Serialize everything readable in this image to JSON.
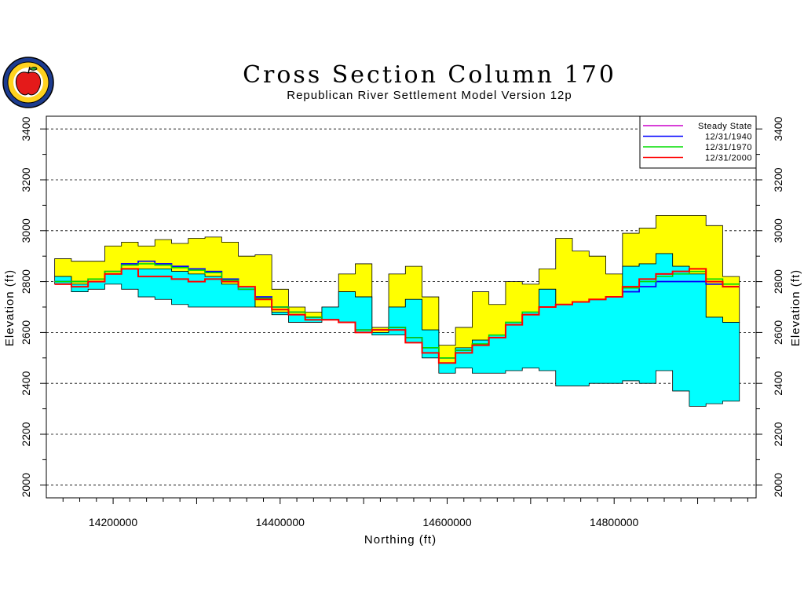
{
  "chart_data": {
    "type": "area",
    "title": "Cross Section Column 170",
    "subtitle": "Republican River Settlement Model Version 12p",
    "xlabel": "Northing (ft)",
    "ylabel": "Elevation (ft)",
    "xlim": [
      14120000,
      14970000
    ],
    "ylim": [
      1950,
      3450
    ],
    "x_ticks": [
      14200000,
      14400000,
      14600000,
      14800000
    ],
    "x_tick_labels": [
      "14200000",
      "14400000",
      "14600000",
      "14800000"
    ],
    "y_ticks": [
      2000,
      2200,
      2400,
      2600,
      2800,
      3000,
      3200,
      3400
    ],
    "y_tick_labels": [
      "2000",
      "2200",
      "2400",
      "2600",
      "2800",
      "3000",
      "3200",
      "3400"
    ],
    "grid": "horizontal dashed",
    "legend_position": "top-right",
    "colors": {
      "upper_layer": "#ffff00",
      "aquifer": "#00ffff",
      "outline": "#000000"
    },
    "x": [
      14140000,
      14160000,
      14180000,
      14200000,
      14220000,
      14240000,
      14260000,
      14280000,
      14300000,
      14320000,
      14340000,
      14360000,
      14380000,
      14400000,
      14420000,
      14440000,
      14460000,
      14480000,
      14500000,
      14520000,
      14540000,
      14560000,
      14580000,
      14600000,
      14620000,
      14640000,
      14660000,
      14680000,
      14700000,
      14720000,
      14740000,
      14760000,
      14780000,
      14800000,
      14820000,
      14840000,
      14860000,
      14880000,
      14900000,
      14920000,
      14940000
    ],
    "land_surface": [
      2890,
      2880,
      2880,
      2940,
      2955,
      2940,
      2965,
      2950,
      2970,
      2975,
      2955,
      2900,
      2905,
      2770,
      2700,
      2680,
      2700,
      2830,
      2870,
      2620,
      2830,
      2860,
      2740,
      2550,
      2620,
      2760,
      2710,
      2800,
      2790,
      2850,
      2970,
      2920,
      2900,
      2830,
      2990,
      3010,
      3060,
      3060,
      3060,
      3020,
      2820
    ],
    "aquifer_top": [
      2820,
      2790,
      2800,
      2830,
      2850,
      2850,
      2850,
      2840,
      2830,
      2820,
      2790,
      2780,
      2700,
      2680,
      2670,
      2660,
      2700,
      2760,
      2740,
      2600,
      2700,
      2730,
      2610,
      2480,
      2540,
      2570,
      2590,
      2640,
      2680,
      2770,
      2710,
      2720,
      2730,
      2740,
      2860,
      2870,
      2910,
      2860,
      2830,
      2660,
      2640
    ],
    "aquifer_base": [
      2790,
      2760,
      2770,
      2790,
      2770,
      2740,
      2730,
      2710,
      2700,
      2700,
      2700,
      2700,
      2700,
      2670,
      2640,
      2640,
      2650,
      2640,
      2600,
      2590,
      2590,
      2560,
      2500,
      2440,
      2460,
      2440,
      2440,
      2450,
      2460,
      2450,
      2390,
      2390,
      2400,
      2400,
      2410,
      2400,
      2450,
      2370,
      2310,
      2320,
      2330
    ],
    "series": [
      {
        "name": "Steady State",
        "color": "#cc00cc",
        "values": [
          2800,
          2800,
          2810,
          2840,
          2870,
          2880,
          2870,
          2860,
          2850,
          2840,
          2810,
          2770,
          2740,
          2700,
          2680,
          2660,
          2650,
          2640,
          2610,
          2610,
          2620,
          2580,
          2540,
          2500,
          2530,
          2550,
          2580,
          2630,
          2670,
          2700,
          2710,
          2720,
          2730,
          2740,
          2760,
          2780,
          2800,
          2800,
          2800,
          2790,
          2780
        ]
      },
      {
        "name": "12/31/1940",
        "color": "#0000ff",
        "values": [
          2800,
          2800,
          2810,
          2840,
          2870,
          2880,
          2870,
          2860,
          2850,
          2840,
          2810,
          2770,
          2740,
          2700,
          2680,
          2660,
          2650,
          2640,
          2610,
          2610,
          2620,
          2580,
          2540,
          2500,
          2530,
          2550,
          2580,
          2630,
          2670,
          2700,
          2710,
          2720,
          2730,
          2740,
          2760,
          2780,
          2800,
          2800,
          2800,
          2790,
          2780
        ]
      },
      {
        "name": "12/31/1970",
        "color": "#00dd00",
        "values": [
          2800,
          2800,
          2810,
          2840,
          2865,
          2870,
          2865,
          2855,
          2845,
          2835,
          2805,
          2770,
          2735,
          2700,
          2680,
          2660,
          2650,
          2640,
          2610,
          2610,
          2620,
          2580,
          2540,
          2500,
          2530,
          2555,
          2590,
          2640,
          2680,
          2700,
          2710,
          2720,
          2730,
          2740,
          2775,
          2800,
          2820,
          2830,
          2840,
          2810,
          2790
        ]
      },
      {
        "name": "12/31/2000",
        "color": "#ff0000",
        "values": [
          2790,
          2780,
          2800,
          2830,
          2850,
          2820,
          2820,
          2810,
          2800,
          2810,
          2800,
          2780,
          2730,
          2690,
          2670,
          2650,
          2650,
          2640,
          2600,
          2610,
          2610,
          2560,
          2520,
          2480,
          2520,
          2550,
          2580,
          2630,
          2670,
          2700,
          2710,
          2720,
          2730,
          2740,
          2780,
          2810,
          2830,
          2840,
          2850,
          2800,
          2780
        ]
      }
    ]
  }
}
